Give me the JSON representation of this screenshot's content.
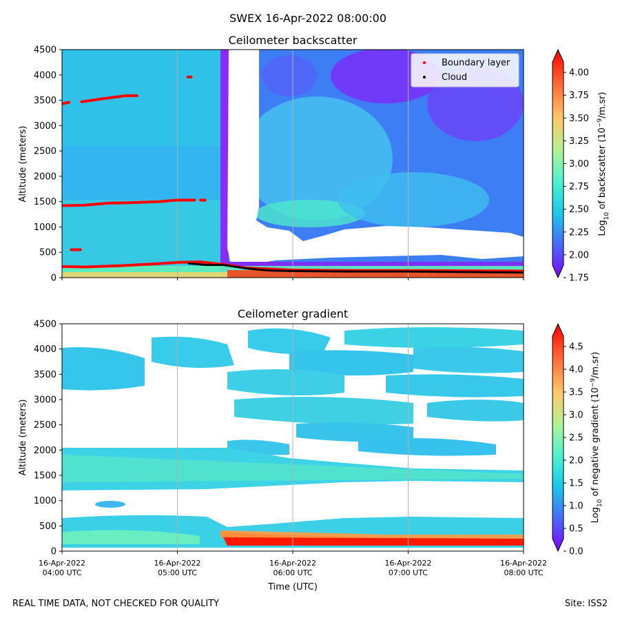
{
  "suptitle": "SWEX 16-Apr-2022 08:00:00",
  "footer": {
    "left": "REAL TIME DATA, NOT CHECKED FOR QUALITY",
    "right": "Site: ISS2"
  },
  "colors": {
    "boundary": "#ff0000",
    "cloud": "#000000"
  },
  "chart_data": [
    {
      "type": "heatmap",
      "title": "Ceilometer backscatter",
      "xlabel": "",
      "ylabel": "Altitude (meters)",
      "x_ticks": [
        "",
        "",
        "",
        "",
        ""
      ],
      "y_ticks": [
        0,
        500,
        1000,
        1500,
        2000,
        2500,
        3000,
        3500,
        4000,
        4500
      ],
      "ylim": [
        0,
        4500
      ],
      "xlim_hours_utc": [
        4.0,
        8.0
      ],
      "colorbar": {
        "label_prefix": "Log",
        "label_sub": "10",
        "label_mid": " of backscatter (10",
        "label_sup": "−9",
        "label_suffix": "/m.sr)",
        "range": [
          1.75,
          4.25
        ],
        "ticks": [
          "1.75",
          "2.00",
          "2.25",
          "2.50",
          "2.75",
          "3.00",
          "3.25",
          "3.50",
          "3.75",
          "4.00"
        ]
      },
      "legend": {
        "position": "top-right",
        "items": [
          {
            "label": "Boundary layer",
            "color": "#ff0000"
          },
          {
            "label": "Cloud",
            "color": "#000000"
          }
        ]
      },
      "boundary_layer": [
        {
          "name": "lower",
          "points": [
            [
              4.0,
              220
            ],
            [
              4.2,
              210
            ],
            [
              4.5,
              235
            ],
            [
              4.8,
              270
            ],
            [
              5.0,
              300
            ],
            [
              5.2,
              310
            ],
            [
              5.4,
              260
            ],
            [
              5.6,
              190
            ],
            [
              6.0,
              150
            ],
            [
              6.5,
              140
            ],
            [
              7.0,
              140
            ],
            [
              8.0,
              130
            ]
          ]
        },
        {
          "name": "mid",
          "points": [
            [
              4.0,
              1420
            ],
            [
              4.2,
              1430
            ],
            [
              4.4,
              1470
            ],
            [
              4.6,
              1480
            ],
            [
              4.85,
              1500
            ],
            [
              5.0,
              1530
            ],
            [
              5.15,
              1530
            ]
          ]
        },
        {
          "name": "mid-2",
          "points": [
            [
              5.2,
              1530
            ],
            [
              5.24,
              1530
            ]
          ]
        },
        {
          "name": "upper-1",
          "points": [
            [
              4.0,
              3430
            ],
            [
              4.06,
              3460
            ]
          ]
        },
        {
          "name": "upper-2",
          "points": [
            [
              4.17,
              3470
            ],
            [
              4.35,
              3530
            ],
            [
              4.55,
              3590
            ],
            [
              4.65,
              3590
            ]
          ]
        },
        {
          "name": "upper-3",
          "points": [
            [
              5.09,
              3960
            ],
            [
              5.12,
              3960
            ]
          ]
        },
        {
          "name": "low-patch",
          "points": [
            [
              4.08,
              550
            ],
            [
              4.16,
              550
            ]
          ]
        }
      ],
      "cloud": [
        [
          5.1,
          280
        ],
        [
          5.25,
          250
        ],
        [
          5.4,
          250
        ],
        [
          5.6,
          180
        ],
        [
          5.8,
          140
        ],
        [
          6.0,
          130
        ],
        [
          6.5,
          120
        ],
        [
          7.0,
          120
        ],
        [
          7.5,
          110
        ],
        [
          8.0,
          100
        ]
      ]
    },
    {
      "type": "heatmap",
      "title": "Ceilometer gradient",
      "xlabel": "Time (UTC)",
      "ylabel": "Altitude (meters)",
      "x_ticks": [
        [
          "16-Apr-2022",
          "04:00 UTC"
        ],
        [
          "16-Apr-2022",
          "05:00 UTC"
        ],
        [
          "16-Apr-2022",
          "06:00 UTC"
        ],
        [
          "16-Apr-2022",
          "07:00 UTC"
        ],
        [
          "16-Apr-2022",
          "08:00 UTC"
        ]
      ],
      "y_ticks": [
        0,
        500,
        1000,
        1500,
        2000,
        2500,
        3000,
        3500,
        4000,
        4500
      ],
      "ylim": [
        0,
        4500
      ],
      "xlim_hours_utc": [
        4.0,
        8.0
      ],
      "colorbar": {
        "label_prefix": "Log",
        "label_sub": "10",
        "label_mid": " of negative gradient (10",
        "label_sup": "−9",
        "label_suffix": "/m.sr)",
        "range": [
          0.0,
          5.0
        ],
        "ticks": [
          "0.0",
          "0.5",
          "1.0",
          "1.5",
          "2.0",
          "2.5",
          "3.0",
          "3.5",
          "4.0",
          "4.5"
        ]
      }
    }
  ]
}
